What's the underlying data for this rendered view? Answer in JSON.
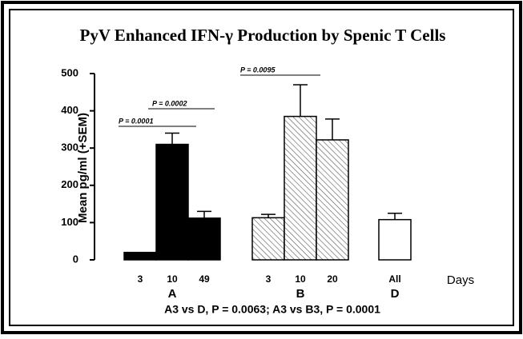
{
  "chart_data": {
    "type": "bar",
    "title": "PyV Enhanced IFN-γ Production by Spenic T Cells",
    "ylabel": "Mean pg/ml (+SEM)",
    "xlabel": "Days",
    "ylim": [
      0,
      500
    ],
    "yticks": [
      0,
      100,
      200,
      300,
      400,
      500
    ],
    "series": [
      {
        "name": "A",
        "fill": "#000000",
        "categories": [
          "3",
          "10",
          "49"
        ],
        "values": [
          20,
          310,
          112
        ],
        "errors": [
          0,
          30,
          18
        ]
      },
      {
        "name": "B",
        "fill": "hatch",
        "categories": [
          "3",
          "10",
          "20"
        ],
        "values": [
          113,
          385,
          322
        ],
        "errors": [
          9,
          85,
          56
        ]
      },
      {
        "name": "D",
        "fill": "#ffffff",
        "categories": [
          "All"
        ],
        "values": [
          108
        ],
        "errors": [
          17
        ]
      }
    ],
    "annotations": [
      "P = 0.0001",
      "P = 0.0002",
      "P = 0.0095"
    ],
    "footnote": "A3 vs D, P = 0.0063;   A3 vs B3, P = 0.0001"
  }
}
